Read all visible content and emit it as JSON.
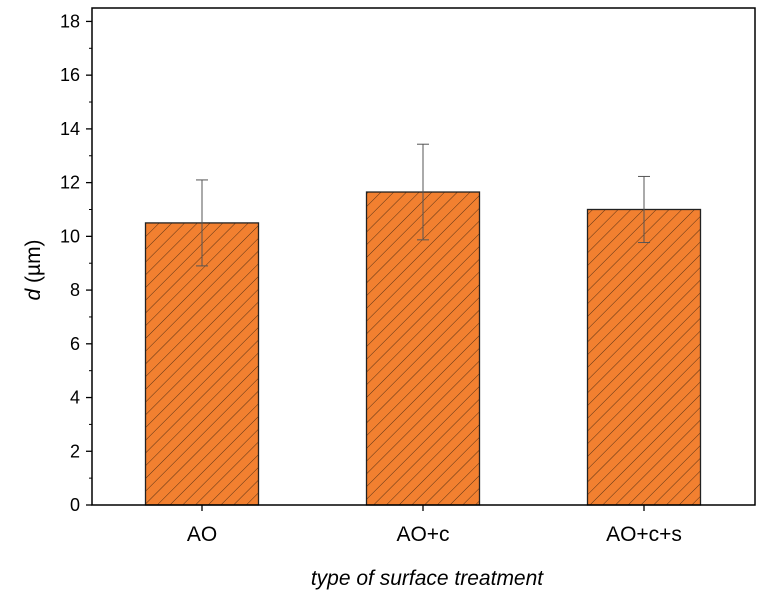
{
  "chart_data": {
    "type": "bar",
    "categories": [
      "AO",
      "AO+c",
      "AO+c+s"
    ],
    "values": [
      10.5,
      11.65,
      11.0
    ],
    "errors": [
      1.6,
      1.78,
      1.23
    ],
    "ylim": [
      0,
      18.5
    ],
    "yticks": [
      "0",
      "2",
      "4",
      "6",
      "8",
      "10",
      "12",
      "14",
      "16",
      "18"
    ],
    "xlabel": "type of surface treatment",
    "ylabel_italic": "d",
    "ylabel_unit": " (µm)",
    "grid": false,
    "bar_fill": "hatched",
    "bar_color": "#f28030",
    "bar_edge_color": "#222222"
  }
}
